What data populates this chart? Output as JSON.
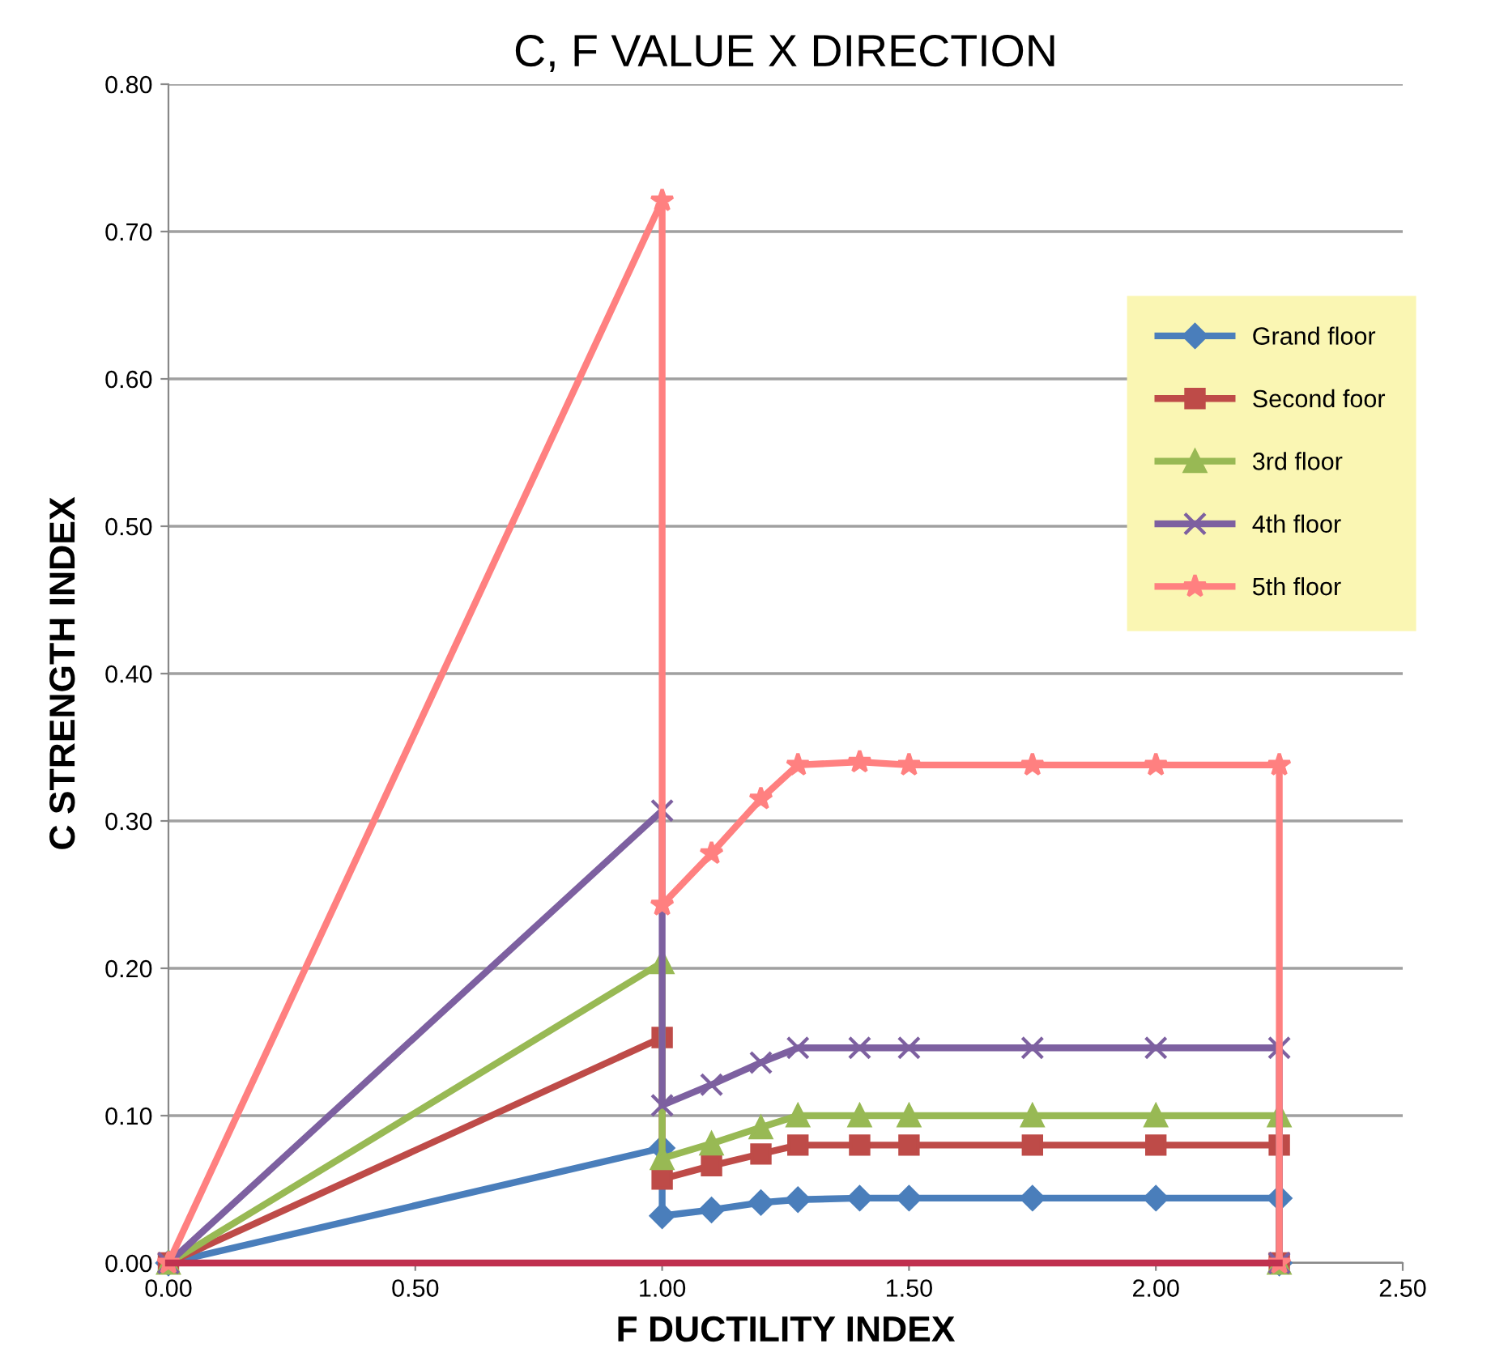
{
  "chart_data": {
    "type": "line",
    "title": "C, F VALUE X DIRECTION",
    "xlabel": "F DUCTILITY INDEX",
    "ylabel": "C STRENGTH INDEX",
    "x": [
      0,
      1.0,
      1.0,
      1.1,
      1.2,
      1.275,
      1.4,
      1.5,
      1.75,
      2.0,
      2.25,
      2.25
    ],
    "series": [
      {
        "name": "Grand floor",
        "color": "#4a7ebb",
        "marker": "diamond",
        "values": [
          0,
          0.078,
          0.032,
          0.036,
          0.041,
          0.043,
          0.044,
          0.044,
          0.044,
          0.044,
          0.044,
          0
        ]
      },
      {
        "name": "Second foor",
        "color": "#be4b48",
        "marker": "square",
        "values": [
          0,
          0.153,
          0.057,
          0.066,
          0.074,
          0.08,
          0.08,
          0.08,
          0.08,
          0.08,
          0.08,
          0
        ]
      },
      {
        "name": "3rd floor",
        "color": "#98b954",
        "marker": "triangle",
        "values": [
          0,
          0.204,
          0.071,
          0.081,
          0.092,
          0.1,
          0.1,
          0.1,
          0.1,
          0.1,
          0.1,
          0
        ]
      },
      {
        "name": "4th floor",
        "color": "#7d60a0",
        "marker": "cross",
        "values": [
          0,
          0.307,
          0.107,
          0.121,
          0.136,
          0.146,
          0.146,
          0.146,
          0.146,
          0.146,
          0.146,
          0
        ]
      },
      {
        "name": "5th floor",
        "color": "#ff8080",
        "marker": "star",
        "values": [
          0,
          0.721,
          0.243,
          0.278,
          0.315,
          0.338,
          0.34,
          0.338,
          0.338,
          0.338,
          0.338,
          0
        ]
      },
      {
        "color": "#c0304f",
        "x": [
          0,
          2.25
        ],
        "values": [
          0,
          0
        ]
      }
    ],
    "xlim": [
      0,
      2.5
    ],
    "ylim": [
      0,
      0.8
    ],
    "xticks": [
      {
        "value": 0,
        "label": "0.00"
      },
      {
        "value": 0.5,
        "label": "0.50"
      },
      {
        "value": 1.0,
        "label": "1.00"
      },
      {
        "value": 1.5,
        "label": "1.50"
      },
      {
        "value": 2.0,
        "label": "2.00"
      },
      {
        "value": 2.5,
        "label": "2.50"
      }
    ],
    "yticks": [
      {
        "value": 0,
        "label": "0.00"
      },
      {
        "value": 0.1,
        "label": "0.10"
      },
      {
        "value": 0.2,
        "label": "0.20"
      },
      {
        "value": 0.3,
        "label": "0.30"
      },
      {
        "value": 0.4,
        "label": "0.40"
      },
      {
        "value": 0.5,
        "label": "0.50"
      },
      {
        "value": 0.6,
        "label": "0.60"
      },
      {
        "value": 0.7,
        "label": "0.70"
      },
      {
        "value": 0.8,
        "label": "0.80"
      }
    ],
    "grid": "y",
    "legend": "top right"
  }
}
